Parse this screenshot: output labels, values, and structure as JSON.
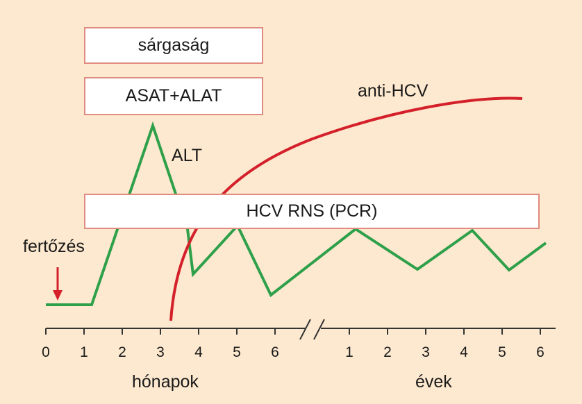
{
  "labels": {
    "jaundice": "sárgaság",
    "enzymes": "ASAT+ALAT",
    "alt": "ALT",
    "anti_hcv": "anti-HCV",
    "hcv_rna": "HCV RNS (PCR)",
    "infection": "fertőzés",
    "months_axis": "hónapok",
    "years_axis": "évek"
  },
  "axis": {
    "months_ticks": [
      "0",
      "1",
      "2",
      "3",
      "4",
      "5",
      "6"
    ],
    "years_ticks": [
      "1",
      "2",
      "3",
      "4",
      "5",
      "6"
    ]
  },
  "colors": {
    "background": "#fde9cf",
    "alt_line": "#2ea04a",
    "anti_hcv_line": "#d4202a",
    "infection_arrow": "#d4202a",
    "box_border": "#e08a80",
    "axis": "#333333"
  }
}
